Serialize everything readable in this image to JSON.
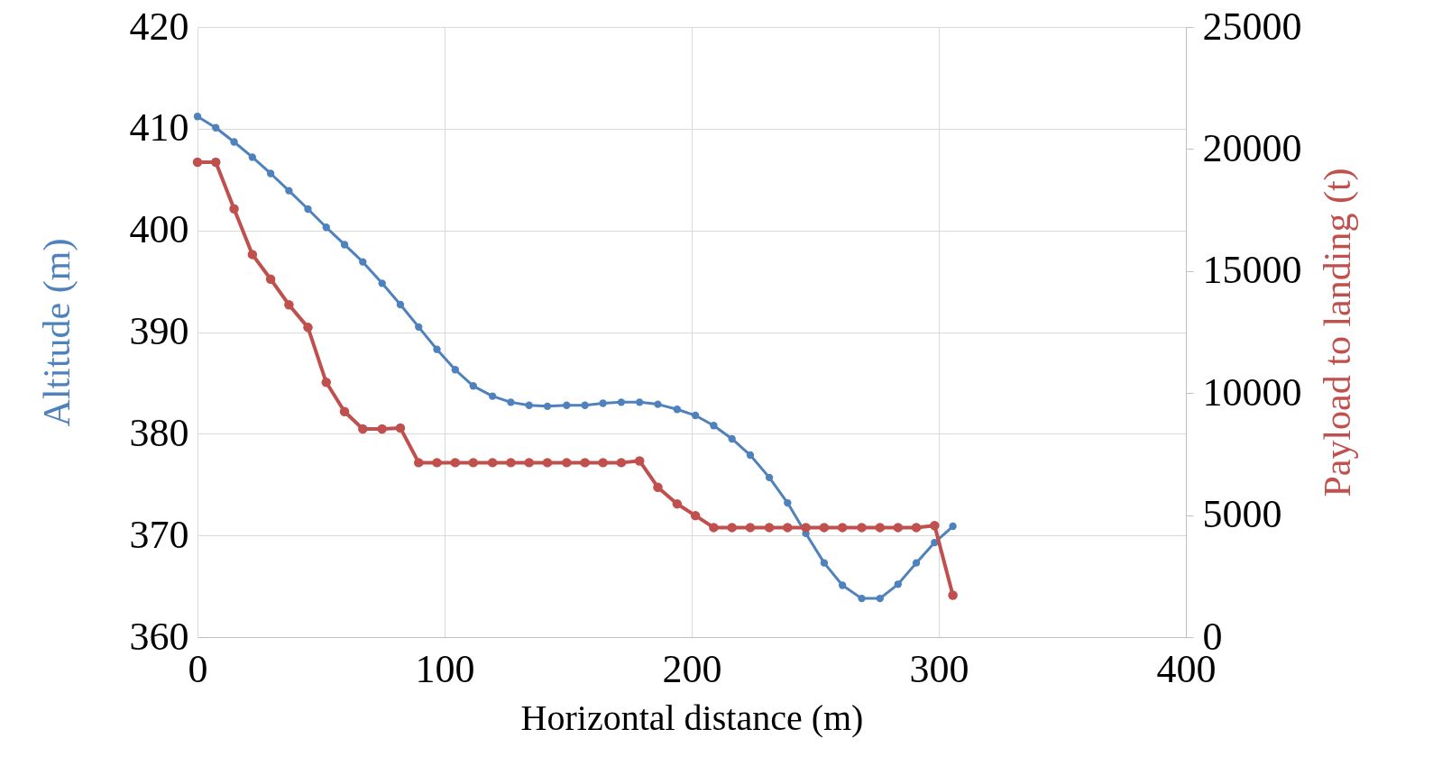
{
  "chart_data": {
    "type": "line",
    "xlabel": "Horizontal distance (m)",
    "ylabel": "Altitude (m)",
    "y2label": "Payload to landing (t)",
    "xlim": [
      0,
      400
    ],
    "xticks": [
      0,
      100,
      200,
      300,
      400
    ],
    "ylim": [
      360,
      420
    ],
    "yticks": [
      360,
      370,
      380,
      390,
      400,
      410,
      420
    ],
    "y2lim": [
      0,
      25000
    ],
    "y2ticks": [
      0,
      5000,
      10000,
      15000,
      20000,
      25000
    ],
    "grid": true,
    "marker": "circle",
    "x": [
      0,
      7.4,
      14.8,
      22.2,
      29.6,
      37,
      44.7,
      52.1,
      59.5,
      66.9,
      74.7,
      82.1,
      89.5,
      96.9,
      104.3,
      111.6,
      119.4,
      126.8,
      134.2,
      141.6,
      149.4,
      156.8,
      164.1,
      171.5,
      178.9,
      186.3,
      194.1,
      201.5,
      208.9,
      216.3,
      223.7,
      231.4,
      238.8,
      246.2,
      253.6,
      261,
      268.8,
      276.2,
      283.5,
      290.9,
      298.3,
      305.7
    ],
    "series": [
      {
        "color": "#4f81bd",
        "values": [
          411.2,
          410.1,
          408.7,
          407.2,
          405.6,
          403.9,
          402.1,
          400.3,
          398.6,
          396.9,
          394.8,
          392.7,
          390.5,
          388.3,
          386.3,
          384.7,
          383.7,
          383.1,
          382.8,
          382.7,
          382.8,
          382.8,
          383.0,
          383.1,
          383.1,
          382.9,
          382.4,
          381.8,
          380.8,
          379.5,
          377.9,
          375.7,
          373.2,
          370.2,
          367.3,
          365.1,
          363.8,
          363.8,
          365.2,
          367.3,
          369.3,
          370.9
        ]
      },
      {
        "color": "#c0504d",
        "axis": "y2",
        "values": [
          19460,
          19460,
          17550,
          15680,
          14670,
          13620,
          12690,
          10440,
          9240,
          8530,
          8530,
          8570,
          7150,
          7150,
          7150,
          7150,
          7150,
          7150,
          7150,
          7150,
          7150,
          7150,
          7150,
          7150,
          7220,
          6140,
          5460,
          4980,
          4490,
          4490,
          4490,
          4490,
          4490,
          4490,
          4490,
          4490,
          4490,
          4490,
          4490,
          4490,
          4570,
          1720
        ]
      }
    ]
  }
}
